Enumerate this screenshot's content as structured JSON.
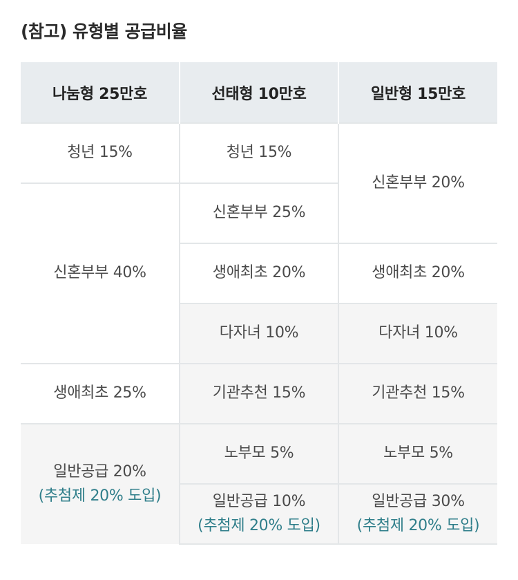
{
  "title": "(참고) 유형별 공급비율",
  "table": {
    "headers": [
      "나눔형 25만호",
      "선태형 10만호",
      "일반형 15만호"
    ],
    "cells": {
      "youth_share": "청년 15%",
      "youth_choice": "청년 15%",
      "newlywed_general": "신혼부부 20%",
      "newlywed_choice": "신혼부부 25%",
      "newlywed_share": "신혼부부 40%",
      "firsttime_choice": "생애최초 20%",
      "firsttime_general": "생애최초 20%",
      "multichild_choice": "다자녀 10%",
      "multichild_general": "다자녀 10%",
      "firsttime_share": "생애최초 25%",
      "agency_choice": "기관추천 15%",
      "agency_general": "기관추천 15%",
      "parents_choice": "노부모 5%",
      "parents_general": "노부모 5%",
      "generalsupply_share": "일반공급 20%",
      "generalsupply_share_note": "(추첨제 20% 도입)",
      "generalsupply_choice": "일반공급 10%",
      "generalsupply_choice_note": "(추첨제 20% 도입)",
      "generalsupply_general": "일반공급 30%",
      "generalsupply_general_note": "(추첨제 20% 도입)"
    }
  },
  "colors": {
    "header_bg": "#e8ecef",
    "row_gray_bg": "#f5f5f5",
    "note_text": "#2f7e8a",
    "grid_line": "#e3e6e8"
  }
}
